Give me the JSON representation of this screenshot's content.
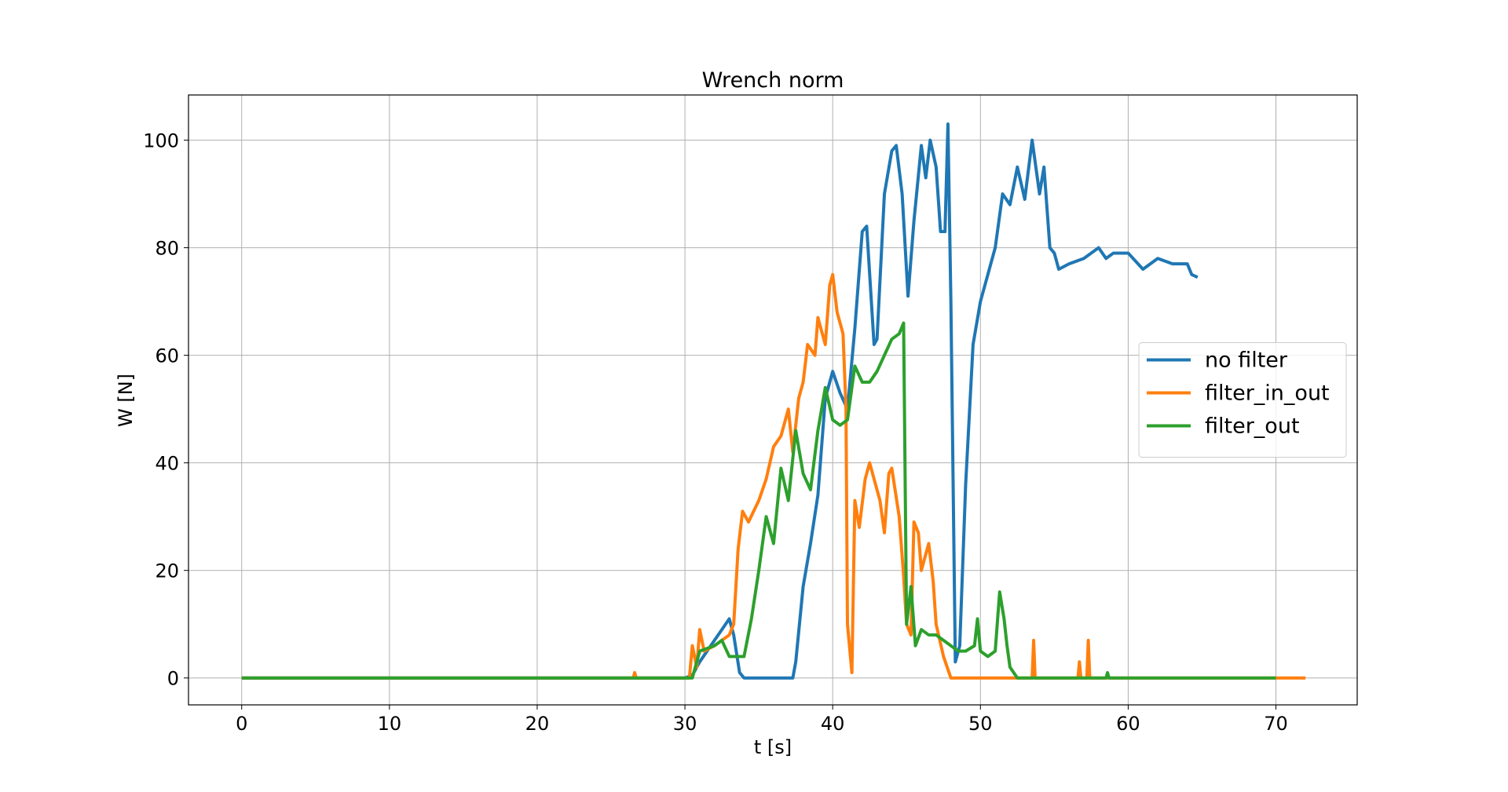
{
  "chart_data": {
    "type": "line",
    "title": "Wrench norm",
    "xlabel": "t [s]",
    "ylabel": "W [N]",
    "xlim": [
      -3.6,
      75.5
    ],
    "ylim": [
      -5,
      108.4
    ],
    "xticks": [
      0,
      10,
      20,
      30,
      40,
      50,
      60,
      70
    ],
    "yticks": [
      0,
      20,
      40,
      60,
      80,
      100
    ],
    "grid": true,
    "legend": "right",
    "series": [
      {
        "name": "no filter",
        "color": "#1f77b4",
        "x": [
          0,
          30,
          30.5,
          31,
          32,
          32.5,
          33,
          33.3,
          33.7,
          34,
          37.3,
          37.5,
          38,
          38.5,
          39,
          39.5,
          40,
          40.5,
          41,
          41.5,
          42,
          42.3,
          42.8,
          43,
          43.5,
          44,
          44.3,
          44.7,
          45.1,
          45.5,
          46,
          46.3,
          46.6,
          47,
          47.3,
          47.6,
          47.8,
          48,
          48.3,
          48.6,
          49,
          49.5,
          50,
          50.5,
          51,
          51.5,
          52,
          52.5,
          53,
          53.5,
          54,
          54.3,
          54.7,
          55,
          55.3,
          56,
          57,
          58,
          58.5,
          59,
          60,
          61,
          61.5,
          62,
          63,
          64,
          64.3,
          64.7
        ],
        "values": [
          0,
          0,
          0.5,
          3,
          7,
          9,
          11,
          8,
          1,
          0,
          0,
          3,
          17,
          25,
          34,
          52,
          57,
          53,
          50,
          65,
          83,
          84,
          62,
          63,
          90,
          98,
          99,
          90,
          71,
          85,
          99,
          93,
          100,
          95,
          83,
          83,
          103,
          70,
          3,
          6,
          36,
          62,
          70,
          75,
          80,
          90,
          88,
          95,
          89,
          100,
          90,
          95,
          80,
          79,
          76,
          77,
          78,
          80,
          78,
          79,
          79,
          76,
          77,
          78,
          77,
          77,
          75,
          74.5
        ]
      },
      {
        "name": "filter_in_out",
        "color": "#ff7f0e",
        "x": [
          0,
          26.5,
          26.6,
          26.7,
          30.3,
          30.5,
          30.8,
          31,
          31.3,
          32,
          33,
          33.3,
          33.6,
          33.9,
          34.3,
          35,
          35.5,
          36,
          36.5,
          37,
          37.3,
          37.7,
          38,
          38.3,
          38.8,
          39,
          39.5,
          39.8,
          40,
          40.3,
          40.7,
          40.9,
          41,
          41.3,
          41.5,
          41.8,
          42.2,
          42.5,
          42.8,
          43.2,
          43.5,
          43.8,
          44,
          44.5,
          44.8,
          45,
          45.3,
          45.5,
          45.8,
          46,
          46.5,
          46.8,
          47,
          47.5,
          48,
          53.5,
          53.6,
          53.7,
          56.6,
          56.7,
          56.8,
          57.2,
          57.3,
          57.4,
          72
        ],
        "values": [
          0,
          0,
          1,
          0,
          0,
          6,
          2,
          9,
          5,
          6,
          8,
          10,
          24,
          31,
          29,
          33,
          37,
          43,
          45,
          50,
          42,
          52,
          55,
          62,
          60,
          67,
          62,
          73,
          75,
          68,
          64,
          50,
          10,
          1,
          33,
          28,
          37,
          40,
          37,
          33,
          27,
          38,
          39,
          30,
          19,
          10,
          8,
          29,
          27,
          20,
          25,
          18,
          10,
          4,
          0,
          0,
          7,
          0,
          0,
          3,
          0,
          0,
          7,
          0,
          0
        ]
      },
      {
        "name": "filter_out",
        "color": "#2ca02c",
        "x": [
          0,
          30.5,
          31,
          32,
          32.5,
          33,
          34,
          34.5,
          35,
          35.5,
          36,
          36.5,
          37,
          37.5,
          38,
          38.5,
          39,
          39.5,
          40,
          40.5,
          41,
          41.5,
          42,
          42.5,
          43,
          43.5,
          44,
          44.5,
          44.8,
          45,
          45.3,
          45.6,
          46,
          46.5,
          47,
          47.5,
          48,
          48.5,
          49,
          49.6,
          49.8,
          50,
          50.5,
          51,
          51.3,
          51.6,
          51.8,
          52,
          52.5,
          58.5,
          58.6,
          58.7,
          70
        ],
        "values": [
          0,
          0,
          5,
          6,
          7,
          4,
          4,
          11,
          20,
          30,
          25,
          39,
          33,
          46,
          38,
          35,
          46,
          54,
          48,
          47,
          48,
          58,
          55,
          55,
          57,
          60,
          63,
          64,
          66,
          10,
          17,
          6,
          9,
          8,
          8,
          7,
          6,
          5,
          5,
          6,
          11,
          5,
          4,
          5,
          16,
          11,
          6,
          2,
          0,
          0,
          1,
          0,
          0
        ]
      }
    ]
  }
}
